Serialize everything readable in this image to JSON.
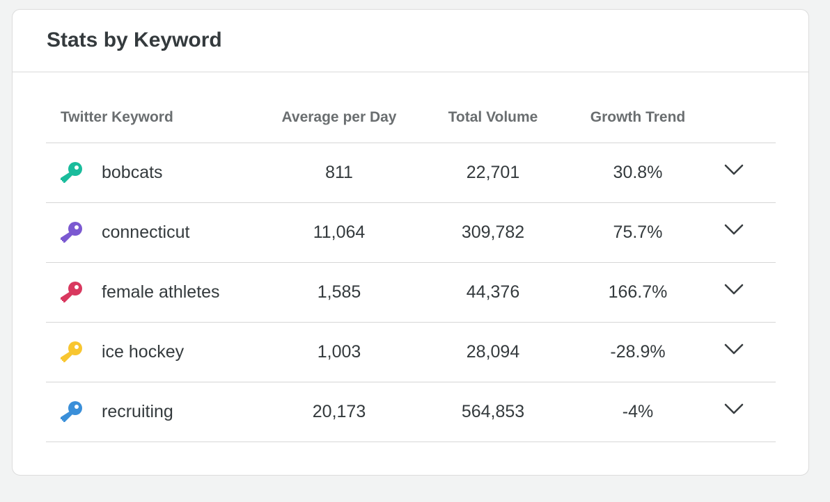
{
  "card": {
    "title": "Stats by Keyword"
  },
  "table": {
    "headers": {
      "keyword": "Twitter Keyword",
      "average": "Average per Day",
      "total": "Total Volume",
      "growth": "Growth Trend"
    },
    "rows": [
      {
        "keyword": "bobcats",
        "average": "811",
        "total": "22,701",
        "growth": "30.8%",
        "icon": "key-icon",
        "color": "#1abc9c"
      },
      {
        "keyword": "connecticut",
        "average": "11,064",
        "total": "309,782",
        "growth": "75.7%",
        "icon": "key-icon",
        "color": "#7b59d1"
      },
      {
        "keyword": "female athletes",
        "average": "1,585",
        "total": "44,376",
        "growth": "166.7%",
        "icon": "key-icon",
        "color": "#d9385f"
      },
      {
        "keyword": "ice hockey",
        "average": "1,003",
        "total": "28,094",
        "growth": "-28.9%",
        "icon": "key-icon",
        "color": "#f8c630"
      },
      {
        "keyword": "recruiting",
        "average": "20,173",
        "total": "564,853",
        "growth": "-4%",
        "icon": "key-icon",
        "color": "#3a8fd9"
      }
    ],
    "row_action_icon": "chevron-down-icon"
  }
}
